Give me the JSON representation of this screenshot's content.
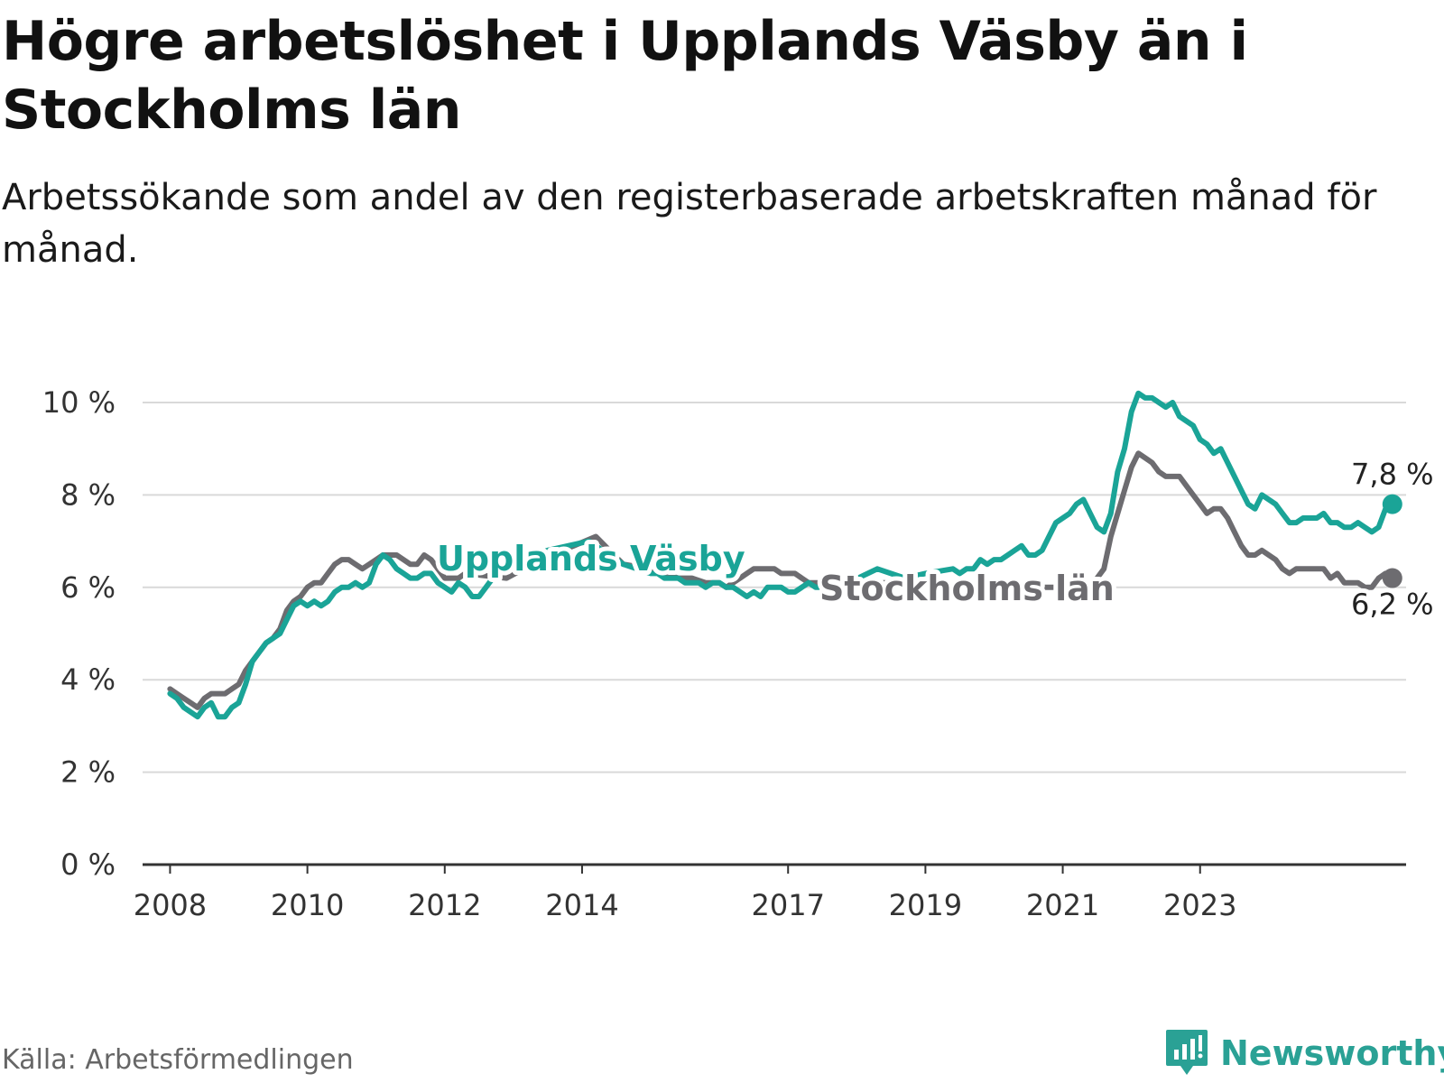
{
  "header": {
    "title": "Högre arbetslöshet i Upplands Väsby än i Stockholms län",
    "subtitle": "Arbetssökande som andel av den registerbaserade arbetskraften månad för månad."
  },
  "footer": {
    "source": "Källa: Arbetsförmedlingen",
    "brand": "Newsworthy"
  },
  "colors": {
    "vasby": "#1aa497",
    "stockholm": "#6d6c70",
    "grid": "#d9d9d9",
    "axis": "#333333"
  },
  "chart_data": {
    "type": "line",
    "title": "Högre arbetslöshet i Upplands Väsby än i Stockholms län",
    "ylim": [
      0,
      10
    ],
    "yticks": [
      {
        "value": 0,
        "label": "0 %"
      },
      {
        "value": 2,
        "label": "2 %"
      },
      {
        "value": 4,
        "label": "4 %"
      },
      {
        "value": 6,
        "label": "6 %"
      },
      {
        "value": 8,
        "label": "8 %"
      },
      {
        "value": 10,
        "label": "10 %"
      }
    ],
    "xlim": [
      2007.6,
      2026.0
    ],
    "xticks": [
      {
        "value": 2008,
        "label": "2008"
      },
      {
        "value": 2010,
        "label": "2010"
      },
      {
        "value": 2012,
        "label": "2012"
      },
      {
        "value": 2014,
        "label": "2014"
      },
      {
        "value": 2017,
        "label": "2017"
      },
      {
        "value": 2019,
        "label": "2019"
      },
      {
        "value": 2021,
        "label": "2021"
      },
      {
        "value": 2023,
        "label": "2023"
      }
    ],
    "series": [
      {
        "name": "Upplands Väsby",
        "key": "vasby",
        "end_label": "7,8 %",
        "points": [
          [
            2008.0,
            3.7
          ],
          [
            2008.1,
            3.6
          ],
          [
            2008.2,
            3.4
          ],
          [
            2008.3,
            3.3
          ],
          [
            2008.4,
            3.2
          ],
          [
            2008.5,
            3.4
          ],
          [
            2008.6,
            3.5
          ],
          [
            2008.7,
            3.2
          ],
          [
            2008.8,
            3.2
          ],
          [
            2008.9,
            3.4
          ],
          [
            2009.0,
            3.5
          ],
          [
            2009.1,
            3.9
          ],
          [
            2009.2,
            4.4
          ],
          [
            2009.3,
            4.6
          ],
          [
            2009.4,
            4.8
          ],
          [
            2009.5,
            4.9
          ],
          [
            2009.6,
            5.0
          ],
          [
            2009.7,
            5.3
          ],
          [
            2009.8,
            5.6
          ],
          [
            2009.9,
            5.7
          ],
          [
            2010.0,
            5.6
          ],
          [
            2010.1,
            5.7
          ],
          [
            2010.2,
            5.6
          ],
          [
            2010.3,
            5.7
          ],
          [
            2010.4,
            5.9
          ],
          [
            2010.5,
            6.0
          ],
          [
            2010.6,
            6.0
          ],
          [
            2010.7,
            6.1
          ],
          [
            2010.8,
            6.0
          ],
          [
            2010.9,
            6.1
          ],
          [
            2011.0,
            6.5
          ],
          [
            2011.1,
            6.7
          ],
          [
            2011.2,
            6.6
          ],
          [
            2011.3,
            6.4
          ],
          [
            2011.4,
            6.3
          ],
          [
            2011.5,
            6.2
          ],
          [
            2011.6,
            6.2
          ],
          [
            2011.7,
            6.3
          ],
          [
            2011.8,
            6.3
          ],
          [
            2011.9,
            6.1
          ],
          [
            2012.0,
            6.0
          ],
          [
            2012.1,
            5.9
          ],
          [
            2012.2,
            6.1
          ],
          [
            2012.3,
            6.0
          ],
          [
            2012.4,
            5.8
          ],
          [
            2012.5,
            5.8
          ],
          [
            2012.6,
            6.0
          ],
          [
            2012.7,
            6.2
          ],
          [
            2013.1,
            6.6
          ],
          [
            2013.5,
            6.8
          ],
          [
            2014.1,
            7.0
          ],
          [
            2014.6,
            6.5
          ],
          [
            2015.0,
            6.3
          ],
          [
            2015.1,
            6.3
          ],
          [
            2015.2,
            6.2
          ],
          [
            2015.3,
            6.2
          ],
          [
            2015.4,
            6.2
          ],
          [
            2015.5,
            6.1
          ],
          [
            2015.6,
            6.1
          ],
          [
            2015.7,
            6.1
          ],
          [
            2015.8,
            6.0
          ],
          [
            2015.9,
            6.1
          ],
          [
            2016.0,
            6.1
          ],
          [
            2016.1,
            6.0
          ],
          [
            2016.2,
            6.0
          ],
          [
            2016.3,
            5.9
          ],
          [
            2016.4,
            5.8
          ],
          [
            2016.5,
            5.9
          ],
          [
            2016.6,
            5.8
          ],
          [
            2016.7,
            6.0
          ],
          [
            2016.8,
            6.0
          ],
          [
            2016.9,
            6.0
          ],
          [
            2017.0,
            5.9
          ],
          [
            2017.1,
            5.9
          ],
          [
            2017.2,
            6.0
          ],
          [
            2017.3,
            6.1
          ],
          [
            2017.4,
            6.0
          ],
          [
            2017.5,
            6.0
          ],
          [
            2017.6,
            5.9
          ],
          [
            2018.3,
            6.4
          ],
          [
            2018.7,
            6.2
          ],
          [
            2019.0,
            6.3
          ],
          [
            2019.4,
            6.4
          ],
          [
            2019.5,
            6.3
          ],
          [
            2019.6,
            6.4
          ],
          [
            2019.7,
            6.4
          ],
          [
            2019.8,
            6.6
          ],
          [
            2019.9,
            6.5
          ],
          [
            2020.0,
            6.6
          ],
          [
            2020.1,
            6.6
          ],
          [
            2020.2,
            6.7
          ],
          [
            2020.3,
            6.8
          ],
          [
            2020.4,
            6.9
          ],
          [
            2020.5,
            6.7
          ],
          [
            2020.6,
            6.7
          ],
          [
            2020.7,
            6.8
          ],
          [
            2020.8,
            7.1
          ],
          [
            2020.9,
            7.4
          ],
          [
            2021.0,
            7.5
          ],
          [
            2021.1,
            7.6
          ],
          [
            2021.2,
            7.8
          ],
          [
            2021.3,
            7.9
          ],
          [
            2021.4,
            7.6
          ],
          [
            2021.5,
            7.3
          ],
          [
            2021.6,
            7.2
          ],
          [
            2021.7,
            7.6
          ],
          [
            2021.8,
            8.5
          ],
          [
            2021.9,
            9.0
          ],
          [
            2022.0,
            9.8
          ],
          [
            2022.1,
            10.2
          ],
          [
            2022.2,
            10.1
          ],
          [
            2022.3,
            10.1
          ],
          [
            2022.4,
            10.0
          ],
          [
            2022.5,
            9.9
          ],
          [
            2022.6,
            10.0
          ],
          [
            2022.7,
            9.7
          ],
          [
            2022.8,
            9.6
          ],
          [
            2022.9,
            9.5
          ],
          [
            2023.0,
            9.2
          ],
          [
            2023.1,
            9.1
          ],
          [
            2023.2,
            8.9
          ],
          [
            2023.3,
            9.0
          ],
          [
            2023.4,
            8.7
          ],
          [
            2023.5,
            8.4
          ],
          [
            2023.6,
            8.1
          ],
          [
            2023.7,
            7.8
          ],
          [
            2023.8,
            7.7
          ],
          [
            2023.9,
            8.0
          ],
          [
            2024.0,
            7.9
          ],
          [
            2024.1,
            7.8
          ],
          [
            2024.2,
            7.6
          ],
          [
            2024.3,
            7.4
          ],
          [
            2024.4,
            7.4
          ],
          [
            2024.5,
            7.5
          ],
          [
            2024.6,
            7.5
          ],
          [
            2024.7,
            7.5
          ],
          [
            2024.8,
            7.6
          ],
          [
            2024.9,
            7.4
          ],
          [
            2025.0,
            7.4
          ],
          [
            2025.1,
            7.3
          ],
          [
            2025.2,
            7.3
          ],
          [
            2025.3,
            7.4
          ],
          [
            2025.4,
            7.3
          ],
          [
            2025.5,
            7.2
          ],
          [
            2025.6,
            7.3
          ],
          [
            2025.7,
            7.7
          ],
          [
            2025.8,
            7.8
          ]
        ]
      },
      {
        "name": "Stockholms län",
        "key": "stockholm",
        "end_label": "6,2 %",
        "points": [
          [
            2008.0,
            3.8
          ],
          [
            2008.1,
            3.7
          ],
          [
            2008.2,
            3.6
          ],
          [
            2008.3,
            3.5
          ],
          [
            2008.4,
            3.4
          ],
          [
            2008.5,
            3.6
          ],
          [
            2008.6,
            3.7
          ],
          [
            2008.7,
            3.7
          ],
          [
            2008.8,
            3.7
          ],
          [
            2008.9,
            3.8
          ],
          [
            2009.0,
            3.9
          ],
          [
            2009.1,
            4.2
          ],
          [
            2009.2,
            4.4
          ],
          [
            2009.3,
            4.6
          ],
          [
            2009.4,
            4.8
          ],
          [
            2009.5,
            4.9
          ],
          [
            2009.6,
            5.1
          ],
          [
            2009.7,
            5.5
          ],
          [
            2009.8,
            5.7
          ],
          [
            2009.9,
            5.8
          ],
          [
            2010.0,
            6.0
          ],
          [
            2010.1,
            6.1
          ],
          [
            2010.2,
            6.1
          ],
          [
            2010.3,
            6.3
          ],
          [
            2010.4,
            6.5
          ],
          [
            2010.5,
            6.6
          ],
          [
            2010.6,
            6.6
          ],
          [
            2010.7,
            6.5
          ],
          [
            2010.8,
            6.4
          ],
          [
            2010.9,
            6.5
          ],
          [
            2011.0,
            6.6
          ],
          [
            2011.1,
            6.7
          ],
          [
            2011.2,
            6.7
          ],
          [
            2011.3,
            6.7
          ],
          [
            2011.4,
            6.6
          ],
          [
            2011.5,
            6.5
          ],
          [
            2011.6,
            6.5
          ],
          [
            2011.7,
            6.7
          ],
          [
            2011.8,
            6.6
          ],
          [
            2011.9,
            6.4
          ],
          [
            2012.0,
            6.2
          ],
          [
            2012.1,
            6.2
          ],
          [
            2012.2,
            6.2
          ],
          [
            2012.3,
            6.3
          ],
          [
            2012.9,
            6.2
          ],
          [
            2013.4,
            6.6
          ],
          [
            2014.2,
            7.1
          ],
          [
            2014.6,
            6.5
          ],
          [
            2015.0,
            6.4
          ],
          [
            2015.2,
            6.3
          ],
          [
            2015.4,
            6.2
          ],
          [
            2015.6,
            6.2
          ],
          [
            2015.8,
            6.1
          ],
          [
            2016.0,
            6.1
          ],
          [
            2016.1,
            6.0
          ],
          [
            2016.2,
            6.1
          ],
          [
            2016.3,
            6.2
          ],
          [
            2016.4,
            6.3
          ],
          [
            2016.5,
            6.4
          ],
          [
            2016.6,
            6.4
          ],
          [
            2016.7,
            6.4
          ],
          [
            2016.8,
            6.4
          ],
          [
            2016.9,
            6.3
          ],
          [
            2017.0,
            6.3
          ],
          [
            2017.1,
            6.3
          ],
          [
            2017.2,
            6.2
          ],
          [
            2017.3,
            6.1
          ],
          [
            2018.0,
            6.1
          ],
          [
            2019.0,
            6.1
          ],
          [
            2020.0,
            6.0
          ],
          [
            2021.0,
            6.0
          ],
          [
            2021.4,
            6.0
          ],
          [
            2021.6,
            6.4
          ],
          [
            2021.7,
            7.1
          ],
          [
            2021.8,
            7.6
          ],
          [
            2021.9,
            8.1
          ],
          [
            2022.0,
            8.6
          ],
          [
            2022.1,
            8.9
          ],
          [
            2022.2,
            8.8
          ],
          [
            2022.3,
            8.7
          ],
          [
            2022.4,
            8.5
          ],
          [
            2022.5,
            8.4
          ],
          [
            2022.6,
            8.4
          ],
          [
            2022.7,
            8.4
          ],
          [
            2022.8,
            8.2
          ],
          [
            2022.9,
            8.0
          ],
          [
            2023.0,
            7.8
          ],
          [
            2023.1,
            7.6
          ],
          [
            2023.2,
            7.7
          ],
          [
            2023.3,
            7.7
          ],
          [
            2023.4,
            7.5
          ],
          [
            2023.5,
            7.2
          ],
          [
            2023.6,
            6.9
          ],
          [
            2023.7,
            6.7
          ],
          [
            2023.8,
            6.7
          ],
          [
            2023.9,
            6.8
          ],
          [
            2024.0,
            6.7
          ],
          [
            2024.1,
            6.6
          ],
          [
            2024.2,
            6.4
          ],
          [
            2024.3,
            6.3
          ],
          [
            2024.4,
            6.4
          ],
          [
            2024.5,
            6.4
          ],
          [
            2024.6,
            6.4
          ],
          [
            2024.7,
            6.4
          ],
          [
            2024.8,
            6.4
          ],
          [
            2024.9,
            6.2
          ],
          [
            2025.0,
            6.3
          ],
          [
            2025.1,
            6.1
          ],
          [
            2025.2,
            6.1
          ],
          [
            2025.3,
            6.1
          ],
          [
            2025.4,
            6.0
          ],
          [
            2025.5,
            6.0
          ],
          [
            2025.6,
            6.2
          ],
          [
            2025.7,
            6.3
          ],
          [
            2025.8,
            6.2
          ]
        ]
      }
    ],
    "annotations": [
      {
        "text": "Upplands Väsby",
        "series": "vasby"
      },
      {
        "text": "Stockholms län",
        "series": "stockholm"
      }
    ]
  }
}
